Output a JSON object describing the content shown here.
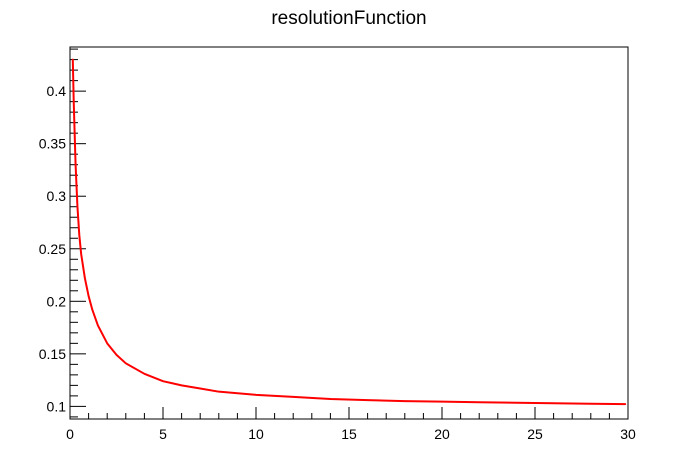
{
  "chart_data": {
    "type": "line",
    "title": "resolutionFunction",
    "xlabel": "",
    "ylabel": "",
    "xlim": [
      0,
      30
    ],
    "ylim": [
      0.088,
      0.442
    ],
    "x_ticks": [
      0,
      5,
      10,
      15,
      20,
      25,
      30
    ],
    "x_tick_labels": [
      "0",
      "5",
      "10",
      "15",
      "20",
      "25",
      "30"
    ],
    "y_ticks": [
      0.1,
      0.15,
      0.2,
      0.25,
      0.3,
      0.35,
      0.4
    ],
    "y_tick_labels": [
      "0.1",
      "0.15",
      "0.2",
      "0.25",
      "0.3",
      "0.35",
      "0.4"
    ],
    "grid": false,
    "legend": "none",
    "series": [
      {
        "color": "#ff0000",
        "x": [
          0.15,
          0.2,
          0.3,
          0.4,
          0.5,
          0.6,
          0.8,
          1.0,
          1.2,
          1.5,
          2.0,
          2.5,
          3.0,
          4.0,
          5.0,
          6.0,
          7.0,
          8.0,
          10.0,
          12.0,
          14.0,
          16.0,
          18.0,
          20.0,
          22.0,
          24.0,
          26.0,
          28.0,
          29.85
        ],
        "y": [
          0.43,
          0.39,
          0.33,
          0.29,
          0.263,
          0.245,
          0.222,
          0.205,
          0.192,
          0.177,
          0.16,
          0.149,
          0.141,
          0.131,
          0.124,
          0.12,
          0.117,
          0.114,
          0.111,
          0.109,
          0.107,
          0.106,
          0.105,
          0.1045,
          0.104,
          0.1035,
          0.103,
          0.1025,
          0.1022
        ]
      }
    ]
  },
  "colors": {
    "frame": "#000000",
    "background": "#ffffff",
    "series": "#ff0000"
  }
}
